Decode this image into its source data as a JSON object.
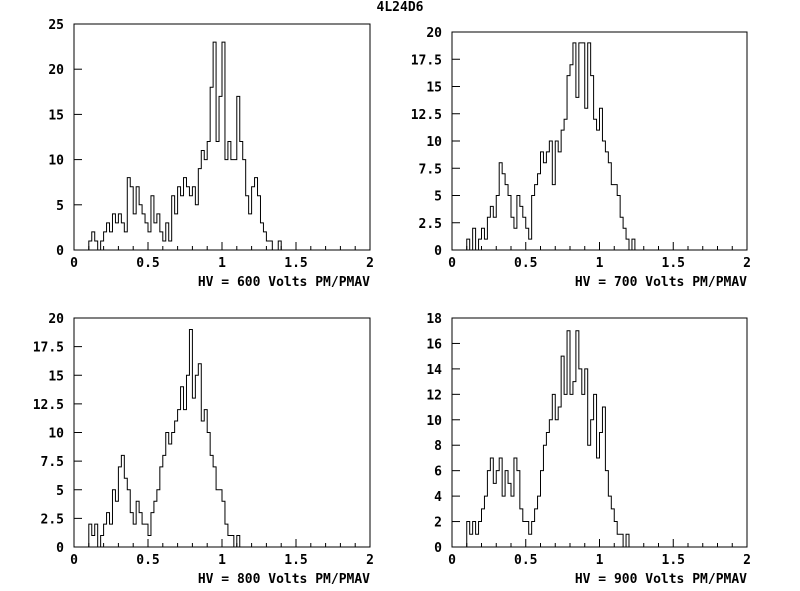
{
  "page_title": "4L24D6",
  "chart_data": [
    {
      "type": "histogram",
      "xlabel": "HV = 600 Volts PM/PMAV",
      "xlim": [
        0,
        2
      ],
      "ylim": [
        0,
        25
      ],
      "xticks": [
        0,
        0.5,
        1,
        1.5,
        2
      ],
      "xtick_labels": [
        "0",
        "0.5",
        "1",
        "1.5",
        "2"
      ],
      "yticks": [
        0,
        5,
        10,
        15,
        20,
        25
      ],
      "ytick_labels": [
        "0",
        "5",
        "10",
        "15",
        "20",
        "25"
      ],
      "bin_start": 0.1,
      "bin_width": 0.02,
      "values": [
        1,
        2,
        1,
        0,
        1,
        2,
        3,
        2,
        4,
        3,
        4,
        3,
        2,
        8,
        7,
        4,
        7,
        5,
        4,
        3,
        2,
        6,
        3,
        4,
        2,
        1,
        3,
        1,
        6,
        4,
        7,
        6,
        8,
        7,
        6,
        7,
        5,
        9,
        11,
        10,
        12,
        18,
        23,
        12,
        17,
        23,
        10,
        12,
        10,
        10,
        17,
        12,
        10,
        6,
        4,
        7,
        8,
        6,
        3,
        2,
        1,
        1,
        0,
        0,
        1
      ]
    },
    {
      "type": "histogram",
      "xlabel": "HV = 700 Volts PM/PMAV",
      "xlim": [
        0,
        2
      ],
      "ylim": [
        0,
        20
      ],
      "xticks": [
        0,
        0.5,
        1,
        1.5,
        2
      ],
      "xtick_labels": [
        "0",
        "0.5",
        "1",
        "1.5",
        "2"
      ],
      "yticks": [
        0,
        2.5,
        5,
        7.5,
        10,
        12.5,
        15,
        17.5,
        20
      ],
      "ytick_labels": [
        "0",
        "2.5",
        "5",
        "7.5",
        "10",
        "12.5",
        "15",
        "17.5",
        "20"
      ],
      "bin_start": 0.1,
      "bin_width": 0.02,
      "values": [
        1,
        0,
        2,
        0,
        1,
        2,
        1,
        3,
        4,
        3,
        5,
        8,
        7,
        6,
        5,
        3,
        2,
        5,
        4,
        3,
        2,
        1,
        5,
        6,
        7,
        9,
        8,
        9,
        10,
        6,
        10,
        9,
        11,
        12,
        16,
        17,
        19,
        14,
        19,
        19,
        13,
        19,
        16,
        12,
        11,
        13,
        10,
        9,
        8,
        6,
        6,
        5,
        3,
        2,
        1,
        0,
        1,
        0
      ]
    },
    {
      "type": "histogram",
      "xlabel": "HV = 800 Volts PM/PMAV",
      "xlim": [
        0,
        2
      ],
      "ylim": [
        0,
        20
      ],
      "xticks": [
        0,
        0.5,
        1,
        1.5,
        2
      ],
      "xtick_labels": [
        "0",
        "0.5",
        "1",
        "1.5",
        "2"
      ],
      "yticks": [
        0,
        2.5,
        5,
        7.5,
        10,
        12.5,
        15,
        17.5,
        20
      ],
      "ytick_labels": [
        "0",
        "2.5",
        "5",
        "7.5",
        "10",
        "12.5",
        "15",
        "17.5",
        "20"
      ],
      "bin_start": 0.1,
      "bin_width": 0.02,
      "values": [
        2,
        1,
        2,
        0,
        1,
        2,
        3,
        2,
        5,
        4,
        7,
        8,
        6,
        5,
        3,
        2,
        4,
        3,
        2,
        2,
        1,
        3,
        4,
        5,
        7,
        8,
        10,
        9,
        10,
        11,
        12,
        14,
        12,
        15,
        19,
        13,
        15,
        16,
        11,
        12,
        10,
        8,
        7,
        5,
        5,
        4,
        2,
        1,
        1,
        0,
        1,
        0,
        0,
        0
      ]
    },
    {
      "type": "histogram",
      "xlabel": "HV = 900 Volts PM/PMAV",
      "xlim": [
        0,
        2
      ],
      "ylim": [
        0,
        18
      ],
      "xticks": [
        0,
        0.5,
        1,
        1.5,
        2
      ],
      "xtick_labels": [
        "0",
        "0.5",
        "1",
        "1.5",
        "2"
      ],
      "yticks": [
        0,
        2,
        4,
        6,
        8,
        10,
        12,
        14,
        16,
        18
      ],
      "ytick_labels": [
        "0",
        "2",
        "4",
        "6",
        "8",
        "10",
        "12",
        "14",
        "16",
        "18"
      ],
      "bin_start": 0.1,
      "bin_width": 0.02,
      "values": [
        2,
        1,
        2,
        1,
        2,
        3,
        4,
        6,
        7,
        5,
        6,
        7,
        4,
        6,
        5,
        4,
        7,
        6,
        3,
        2,
        2,
        1,
        2,
        3,
        4,
        6,
        8,
        9,
        10,
        12,
        10,
        11,
        15,
        12,
        17,
        12,
        13,
        17,
        14,
        12,
        14,
        8,
        10,
        12,
        7,
        9,
        11,
        6,
        4,
        3,
        2,
        1,
        1,
        0,
        1,
        0
      ]
    }
  ]
}
